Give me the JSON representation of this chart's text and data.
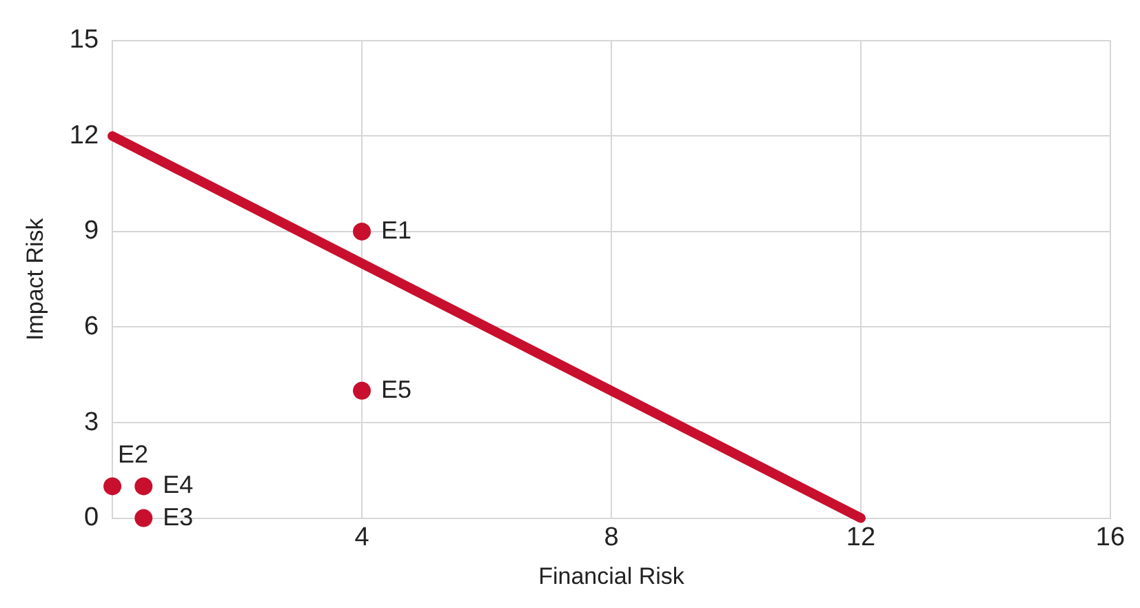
{
  "chart_data": {
    "type": "scatter",
    "xlabel": "Financial Risk",
    "ylabel": "Impact Risk",
    "xlim": [
      0,
      16
    ],
    "xticks": [
      {
        "value": 0,
        "label": null
      },
      4,
      8,
      12,
      16
    ],
    "ylim": [
      0,
      15
    ],
    "yticks": [
      0,
      3,
      6,
      9,
      12,
      15
    ],
    "grid": true,
    "legend": false,
    "series": [
      {
        "type": "line",
        "x": [
          0,
          12
        ],
        "values": [
          12,
          0
        ],
        "color": "#c8102e",
        "marker": "none",
        "line_style": "solid"
      },
      {
        "type": "scatter",
        "x": [
          4,
          0,
          0.5,
          0.5,
          4
        ],
        "values": [
          9,
          1,
          0,
          1,
          4
        ],
        "color": "#c8102e",
        "marker": "circle"
      }
    ],
    "annotations": [
      {
        "text": "E1",
        "x": 4,
        "y": 9
      },
      {
        "text": "E2",
        "x": 0,
        "y": 1
      },
      {
        "text": "E3",
        "x": 0.5,
        "y": 0
      },
      {
        "text": "E4",
        "x": 0.5,
        "y": 1
      },
      {
        "text": "E5",
        "x": 4,
        "y": 4
      }
    ]
  }
}
